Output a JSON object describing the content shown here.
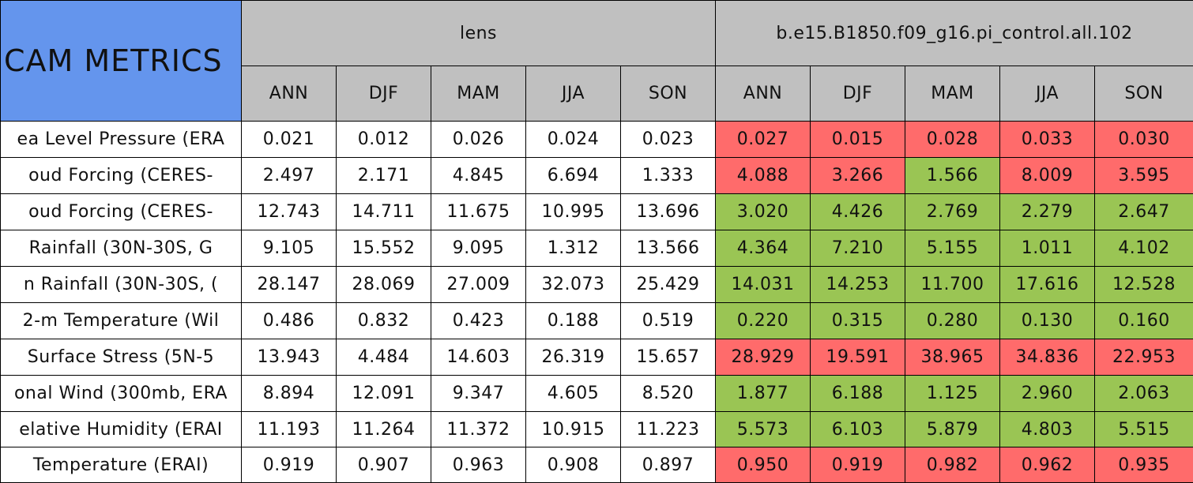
{
  "header": {
    "title": "CAM METRICS",
    "groups": [
      "lens",
      "b.e15.B1850.f09_g16.pi_control.all.102"
    ],
    "seasons": [
      "ANN",
      "DJF",
      "MAM",
      "JJA",
      "SON"
    ]
  },
  "colors": {
    "red": "#ff6b6b",
    "green": "#9ac554"
  },
  "rows": [
    {
      "label": "ea Level Pressure (ERA",
      "lens": [
        "0.021",
        "0.012",
        "0.026",
        "0.024",
        "0.023"
      ],
      "control": [
        "0.027",
        "0.015",
        "0.028",
        "0.033",
        "0.030"
      ],
      "control_colors": [
        "red",
        "red",
        "red",
        "red",
        "red"
      ]
    },
    {
      "label": "oud Forcing (CERES-",
      "lens": [
        "2.497",
        "2.171",
        "4.845",
        "6.694",
        "1.333"
      ],
      "control": [
        "4.088",
        "3.266",
        "1.566",
        "8.009",
        "3.595"
      ],
      "control_colors": [
        "red",
        "red",
        "green",
        "red",
        "red"
      ]
    },
    {
      "label": "oud Forcing (CERES-",
      "lens": [
        "12.743",
        "14.711",
        "11.675",
        "10.995",
        "13.696"
      ],
      "control": [
        "3.020",
        "4.426",
        "2.769",
        "2.279",
        "2.647"
      ],
      "control_colors": [
        "green",
        "green",
        "green",
        "green",
        "green"
      ]
    },
    {
      "label": "Rainfall (30N-30S, G",
      "lens": [
        "9.105",
        "15.552",
        "9.095",
        "1.312",
        "13.566"
      ],
      "control": [
        "4.364",
        "7.210",
        "5.155",
        "1.011",
        "4.102"
      ],
      "control_colors": [
        "green",
        "green",
        "green",
        "green",
        "green"
      ]
    },
    {
      "label": "n Rainfall (30N-30S, (",
      "lens": [
        "28.147",
        "28.069",
        "27.009",
        "32.073",
        "25.429"
      ],
      "control": [
        "14.031",
        "14.253",
        "11.700",
        "17.616",
        "12.528"
      ],
      "control_colors": [
        "green",
        "green",
        "green",
        "green",
        "green"
      ]
    },
    {
      "label": "2-m Temperature (Wil",
      "lens": [
        "0.486",
        "0.832",
        "0.423",
        "0.188",
        "0.519"
      ],
      "control": [
        "0.220",
        "0.315",
        "0.280",
        "0.130",
        "0.160"
      ],
      "control_colors": [
        "green",
        "green",
        "green",
        "green",
        "green"
      ]
    },
    {
      "label": "Surface Stress (5N-5",
      "lens": [
        "13.943",
        "4.484",
        "14.603",
        "26.319",
        "15.657"
      ],
      "control": [
        "28.929",
        "19.591",
        "38.965",
        "34.836",
        "22.953"
      ],
      "control_colors": [
        "red",
        "red",
        "red",
        "red",
        "red"
      ]
    },
    {
      "label": "onal Wind (300mb, ERA",
      "lens": [
        "8.894",
        "12.091",
        "9.347",
        "4.605",
        "8.520"
      ],
      "control": [
        "1.877",
        "6.188",
        "1.125",
        "2.960",
        "2.063"
      ],
      "control_colors": [
        "green",
        "green",
        "green",
        "green",
        "green"
      ]
    },
    {
      "label": "elative Humidity (ERAI",
      "lens": [
        "11.193",
        "11.264",
        "11.372",
        "10.915",
        "11.223"
      ],
      "control": [
        "5.573",
        "6.103",
        "5.879",
        "4.803",
        "5.515"
      ],
      "control_colors": [
        "green",
        "green",
        "green",
        "green",
        "green"
      ]
    },
    {
      "label": "Temperature (ERAI)",
      "lens": [
        "0.919",
        "0.907",
        "0.963",
        "0.908",
        "0.897"
      ],
      "control": [
        "0.950",
        "0.919",
        "0.982",
        "0.962",
        "0.935"
      ],
      "control_colors": [
        "red",
        "red",
        "red",
        "red",
        "red"
      ]
    }
  ]
}
